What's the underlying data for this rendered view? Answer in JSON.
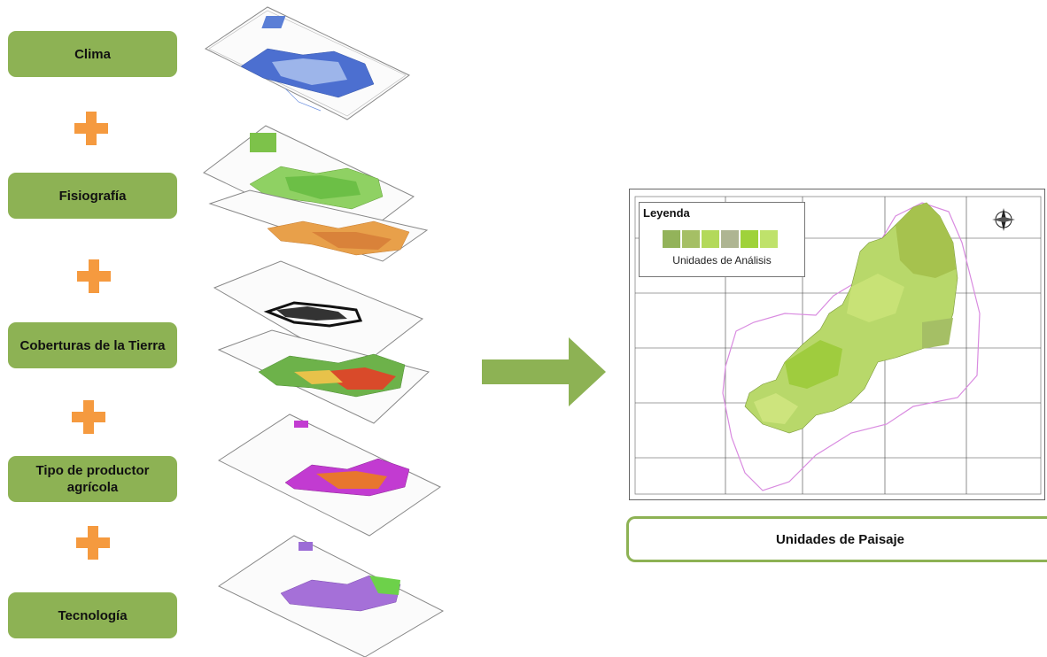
{
  "inputs": {
    "clima": "Clima",
    "fisiografia": "Fisiografía",
    "coberturas": "Coberturas de la Tierra",
    "tipo_productor": "Tipo de productor agrícola",
    "tecnologia": "Tecnología"
  },
  "result_map": {
    "legend_title": "Leyenda",
    "legend_label": "Unidades de Análisis",
    "legend_colors": [
      "#93b35a",
      "#a5bf65",
      "#b3d95a",
      "#aeb592",
      "#9fd23a",
      "#bfe26b"
    ]
  },
  "output": {
    "label": "Unidades de Paisaje"
  },
  "colors": {
    "box_green": "#8db254",
    "plus_orange": "#f59a3f",
    "arrow_green": "#8db254"
  }
}
